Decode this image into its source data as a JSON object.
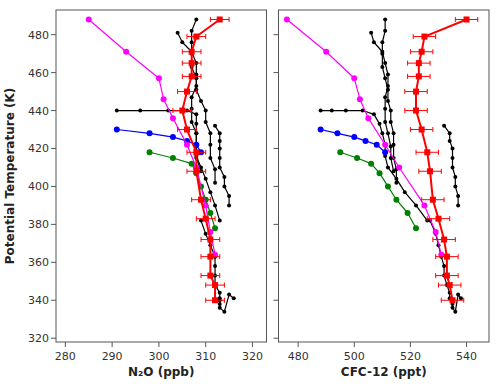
{
  "chart_data": [
    {
      "type": "line",
      "xlabel": "N₂O (ppb)",
      "ylabel": "Potential Temperature (K)",
      "xlim": [
        278,
        323
      ],
      "xticks": [
        280,
        290,
        300,
        310,
        320
      ],
      "ylim": [
        318,
        493
      ],
      "yticks": [
        320,
        340,
        360,
        380,
        400,
        420,
        440,
        460,
        480
      ],
      "grid": false,
      "series": [
        {
          "color": "black",
          "marker": "circle",
          "x": [
            308,
            307,
            307,
            307,
            307,
            308,
            308,
            309,
            310,
            310,
            311,
            311,
            311,
            312,
            312
          ],
          "values": [
            488,
            482,
            476,
            470,
            463,
            457,
            451,
            445,
            440,
            434,
            428,
            422,
            415,
            409,
            402
          ]
        },
        {
          "color": "black",
          "marker": "circle",
          "x": [
            304,
            305,
            307,
            308,
            308,
            308,
            307,
            307,
            307,
            308,
            308,
            308,
            309
          ],
          "values": [
            481,
            476,
            471,
            465,
            459,
            453,
            447,
            441,
            434,
            428,
            421,
            415,
            408
          ]
        },
        {
          "color": "black",
          "marker": "circle",
          "x": [
            291,
            296,
            302,
            306,
            308,
            308,
            308,
            308,
            308,
            309,
            310,
            311,
            312,
            313
          ],
          "values": [
            440,
            440,
            440,
            440,
            438,
            433,
            428,
            422,
            416,
            410,
            404,
            397,
            390,
            382
          ]
        },
        {
          "color": "black",
          "marker": "circle",
          "x": [
            309,
            310,
            311,
            312,
            312,
            312,
            312,
            313,
            313,
            313,
            313,
            313,
            314,
            315,
            316
          ],
          "values": [
            382,
            375,
            369,
            363,
            358,
            353,
            348,
            344,
            341,
            340,
            338,
            336,
            334,
            343,
            341
          ]
        },
        {
          "color": "black",
          "marker": "circle",
          "x": [
            312,
            313,
            313,
            313,
            313,
            313,
            314,
            314,
            315,
            315
          ],
          "values": [
            432,
            428,
            424,
            420,
            415,
            410,
            405,
            400,
            395,
            390
          ]
        },
        {
          "color": "blue",
          "marker": "circle",
          "x": [
            291,
            298,
            303,
            306,
            308,
            309
          ],
          "values": [
            430,
            428,
            426,
            424,
            422,
            418
          ]
        },
        {
          "color": "green",
          "marker": "circle",
          "x": [
            298,
            303,
            307,
            308,
            309,
            310,
            311,
            312
          ],
          "values": [
            418,
            415,
            412,
            407,
            400,
            393,
            386,
            378
          ]
        },
        {
          "color": "magenta",
          "marker": "circle",
          "x": [
            285,
            293,
            300,
            301,
            303,
            306,
            308,
            310,
            311,
            312
          ],
          "values": [
            488,
            471,
            457,
            446,
            436,
            422,
            410,
            390,
            376,
            364
          ]
        },
        {
          "color": "red",
          "marker": "square",
          "x": [
            312,
            312,
            311,
            311,
            311,
            310,
            309,
            308,
            308,
            306,
            305,
            306,
            307,
            307,
            307,
            308,
            313
          ],
          "values": [
            340,
            348,
            353,
            363,
            372,
            383,
            393,
            408,
            418,
            430,
            440,
            450,
            458,
            465,
            471,
            479,
            488
          ],
          "xerr": [
            2,
            2,
            2,
            2,
            2,
            2,
            2,
            2,
            2,
            2,
            2,
            2,
            2,
            2,
            2,
            2,
            2
          ]
        }
      ]
    },
    {
      "type": "line",
      "xlabel": "CFC-12 (ppt)",
      "xlim": [
        473,
        548
      ],
      "xticks": [
        480,
        500,
        520,
        540
      ],
      "ylim": [
        318,
        493
      ],
      "yticks": [
        320,
        340,
        360,
        380,
        400,
        420,
        440,
        460,
        480
      ],
      "grid": false,
      "tick_labels": "x",
      "series": [
        {
          "color": "black",
          "marker": "circle",
          "x": [
            511,
            511,
            510,
            510,
            510,
            511,
            512,
            512,
            513,
            513,
            514,
            514,
            514,
            515,
            515
          ],
          "values": [
            488,
            482,
            476,
            470,
            463,
            457,
            451,
            445,
            440,
            434,
            428,
            422,
            415,
            409,
            402
          ]
        },
        {
          "color": "black",
          "marker": "circle",
          "x": [
            506,
            507,
            510,
            511,
            512,
            512,
            511,
            511,
            511,
            512,
            513,
            513,
            514
          ],
          "values": [
            481,
            476,
            471,
            465,
            459,
            453,
            447,
            441,
            434,
            428,
            421,
            415,
            408
          ]
        },
        {
          "color": "black",
          "marker": "circle",
          "x": [
            488,
            492,
            497,
            503,
            507,
            509,
            510,
            511,
            511,
            512,
            515,
            518,
            522,
            526
          ],
          "values": [
            440,
            440,
            440,
            440,
            438,
            433,
            428,
            422,
            416,
            410,
            404,
            397,
            390,
            382
          ]
        },
        {
          "color": "black",
          "marker": "circle",
          "x": [
            527,
            529,
            530,
            531,
            532,
            532,
            533,
            534,
            534,
            535,
            535,
            535,
            536,
            537,
            538
          ],
          "values": [
            382,
            375,
            369,
            363,
            358,
            353,
            348,
            344,
            341,
            340,
            338,
            336,
            334,
            343,
            341
          ]
        },
        {
          "color": "black",
          "marker": "circle",
          "x": [
            532,
            534,
            534,
            535,
            535,
            535,
            536,
            536,
            537,
            537
          ],
          "values": [
            432,
            428,
            424,
            420,
            415,
            410,
            405,
            400,
            395,
            390
          ]
        },
        {
          "color": "blue",
          "marker": "circle",
          "x": [
            488,
            494,
            500,
            504,
            508,
            511
          ],
          "values": [
            430,
            428,
            426,
            424,
            422,
            418
          ]
        },
        {
          "color": "green",
          "marker": "circle",
          "x": [
            495,
            501,
            506,
            509,
            512,
            515,
            519,
            522
          ],
          "values": [
            418,
            415,
            412,
            407,
            400,
            393,
            386,
            378
          ]
        },
        {
          "color": "magenta",
          "marker": "circle",
          "x": [
            476,
            490,
            500,
            502,
            505,
            511,
            516,
            525,
            529,
            531
          ],
          "values": [
            488,
            471,
            457,
            446,
            436,
            422,
            410,
            390,
            376,
            364
          ]
        },
        {
          "color": "red",
          "marker": "square",
          "x": [
            535,
            534,
            533,
            533,
            532,
            530,
            528,
            527,
            526,
            524,
            522,
            522,
            523,
            523,
            524,
            525,
            540
          ],
          "values": [
            340,
            348,
            353,
            363,
            372,
            383,
            393,
            408,
            418,
            430,
            440,
            450,
            458,
            465,
            471,
            479,
            488
          ],
          "xerr": [
            4,
            4,
            4,
            4,
            4,
            4,
            4,
            4,
            4,
            4,
            4,
            4,
            4,
            4,
            4,
            4,
            4
          ]
        }
      ]
    }
  ]
}
